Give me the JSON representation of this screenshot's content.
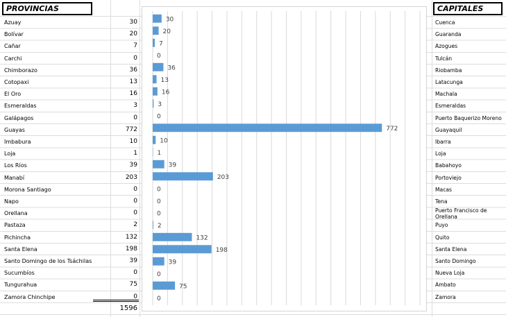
{
  "headers": {
    "provincias": "PROVINCIAS",
    "capitales": "CAPITALES"
  },
  "rows": [
    {
      "provincia": "Azuay",
      "value": "30",
      "capital": "Cuenca"
    },
    {
      "provincia": "Bolívar",
      "value": "20",
      "capital": "Guaranda"
    },
    {
      "provincia": "Cañar",
      "value": "7",
      "capital": "Azogues"
    },
    {
      "provincia": "Carchi",
      "value": "0",
      "capital": "Tulcán"
    },
    {
      "provincia": "Chimborazo",
      "value": "36",
      "capital": "Riobamba"
    },
    {
      "provincia": "Cotopaxi",
      "value": "13",
      "capital": "Latacunga"
    },
    {
      "provincia": "El Oro",
      "value": "16",
      "capital": "Machala"
    },
    {
      "provincia": "Esmeraldas",
      "value": "3",
      "capital": "Esmeraldas"
    },
    {
      "provincia": "Galápagos",
      "value": "0",
      "capital": "Puerto Baquerizo Moreno"
    },
    {
      "provincia": "Guayas",
      "value": "772",
      "capital": "Guayaquil"
    },
    {
      "provincia": "Imbabura",
      "value": "10",
      "capital": "Ibarra"
    },
    {
      "provincia": "Loja",
      "value": "1",
      "capital": "Loja"
    },
    {
      "provincia": "Los Ríos",
      "value": "39",
      "capital": "Babahoyo"
    },
    {
      "provincia": "Manabí",
      "value": "203",
      "capital": "Portoviejo"
    },
    {
      "provincia": "Morona Santiago",
      "value": "0",
      "capital": "Macas"
    },
    {
      "provincia": "Napo",
      "value": "0",
      "capital": "Tena"
    },
    {
      "provincia": "Orellana",
      "value": "0",
      "capital": "Puerto Francisco de Orellana"
    },
    {
      "provincia": "Pastaza",
      "value": "2",
      "capital": "Puyo"
    },
    {
      "provincia": "Pichincha",
      "value": "132",
      "capital": "Quito"
    },
    {
      "provincia": "Santa Elena",
      "value": "198",
      "capital": "Santa Elena"
    },
    {
      "provincia": "Santo Domingo de los Tsáchilas",
      "value": "39",
      "capital": "Santo Domingo"
    },
    {
      "provincia": "Sucumbíos",
      "value": "0",
      "capital": "Nueva Loja"
    },
    {
      "provincia": "Tungurahua",
      "value": "75",
      "capital": "Ambato"
    },
    {
      "provincia": "Zamora Chinchipe",
      "value": "0",
      "capital": "Zamora"
    }
  ],
  "total": "1596",
  "chart_data": {
    "type": "bar",
    "orientation": "horizontal",
    "categories": [
      "Azuay",
      "Bolívar",
      "Cañar",
      "Carchi",
      "Chimborazo",
      "Cotopaxi",
      "El Oro",
      "Esmeraldas",
      "Galápagos",
      "Guayas",
      "Imbabura",
      "Loja",
      "Los Ríos",
      "Manabí",
      "Morona Santiago",
      "Napo",
      "Orellana",
      "Pastaza",
      "Pichincha",
      "Santa Elena",
      "Santo Domingo de los Tsáchilas",
      "Sucumbíos",
      "Tungurahua",
      "Zamora Chinchipe"
    ],
    "values": [
      30,
      20,
      7,
      0,
      36,
      13,
      16,
      3,
      0,
      772,
      10,
      1,
      39,
      203,
      0,
      0,
      0,
      2,
      132,
      198,
      39,
      0,
      75,
      0
    ],
    "xlim": [
      0,
      900
    ],
    "grid": true,
    "bar_color": "#5b9bd5",
    "label_color": "#404040",
    "gridline_color": "#d9d9d9"
  }
}
